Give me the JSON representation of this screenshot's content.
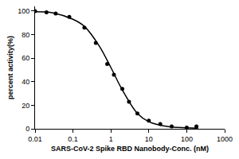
{
  "chart_data": {
    "type": "scatter",
    "x_label": "SARS-CoV-2 Spike RBD Nanobody-Conc. (nM)",
    "y_label": "percent activity(%)",
    "log": "x",
    "xlim": [
      0.01,
      1000
    ],
    "xticks": [
      0.01,
      0.1,
      1,
      10,
      100,
      1000
    ],
    "ylim": [
      0,
      104
    ],
    "yticks": [
      0,
      20,
      40,
      60,
      80,
      100
    ],
    "grid": false,
    "series": [
      {
        "type": "scatter",
        "marker": "circle",
        "color": "#000000",
        "x": [
          0.01,
          0.02,
          0.035,
          0.08,
          0.2,
          0.4,
          0.8,
          1.2,
          2,
          3,
          5,
          10,
          20,
          40,
          100,
          180
        ],
        "values": [
          100,
          99,
          98,
          95,
          86,
          73,
          55,
          46,
          34,
          23,
          13,
          7,
          4,
          2,
          1,
          2
        ]
      },
      {
        "type": "line",
        "line_style": "solid",
        "color": "#000000",
        "x": [
          0.01,
          0.03,
          0.1,
          0.2,
          0.5,
          1,
          2,
          5,
          10,
          30,
          100,
          200
        ],
        "values": [
          99.5,
          98.5,
          93,
          87,
          70,
          52,
          33,
          13,
          6,
          2,
          0.8,
          0.5
        ]
      }
    ]
  }
}
